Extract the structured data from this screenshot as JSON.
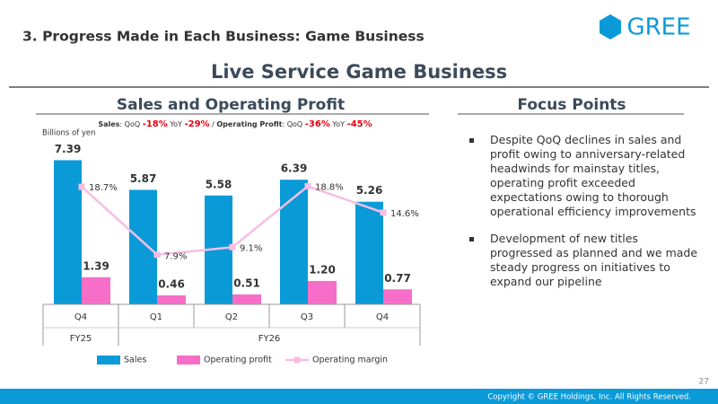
{
  "header": {
    "section": "3. Progress Made in Each Business: Game Business",
    "logo": "GREE",
    "title": "Live Service Game Business"
  },
  "chart_data": {
    "type": "combo",
    "title": "Sales and Operating Profit",
    "subtitle": [
      "Sales",
      ": QoQ ",
      "-18%",
      " YoY ",
      "-29%",
      " / ",
      "Operating Profit",
      ": QoQ ",
      "-36%",
      " YoY ",
      "-45%"
    ],
    "y_label": "Billions of yen",
    "categories": [
      "Q4",
      "Q1",
      "Q2",
      "Q3",
      "Q4"
    ],
    "fiscal_years": [
      "FY25",
      "FY26"
    ],
    "series": [
      {
        "name": "Sales",
        "color": "#0a9ad8",
        "values": [
          7.39,
          5.87,
          5.58,
          6.39,
          5.26
        ]
      },
      {
        "name": "Operating profit",
        "color": "#f76ec8",
        "values": [
          1.39,
          0.46,
          0.51,
          1.2,
          0.77
        ],
        "value_labels": [
          "1.39",
          "0.46",
          "0.51",
          "1.20",
          "0.77"
        ]
      },
      {
        "name": "Operating margin",
        "color": "#f8bde3",
        "axis": "y2",
        "values": [
          18.7,
          7.9,
          9.1,
          18.8,
          14.6
        ],
        "value_labels": [
          "18.7%",
          "7.9%",
          "9.1%",
          "18.8%",
          "14.6%"
        ]
      }
    ],
    "ylim": [
      0,
      8.7
    ],
    "y2lim": [
      0,
      27
    ]
  },
  "focus": {
    "title": "Focus Points",
    "bullets": [
      "Despite QoQ declines in sales and profit owing to anniversary-related headwinds for mainstay titles, operating profit exceeded expectations owing to thorough operational efficiency improvements",
      "Development of new titles progressed as planned and we made steady progress on initiatives to expand our pipeline"
    ]
  },
  "footer": {
    "page": "27",
    "copyright": "Copyright © GREE Holdings, Inc. All Rights Reserved."
  }
}
